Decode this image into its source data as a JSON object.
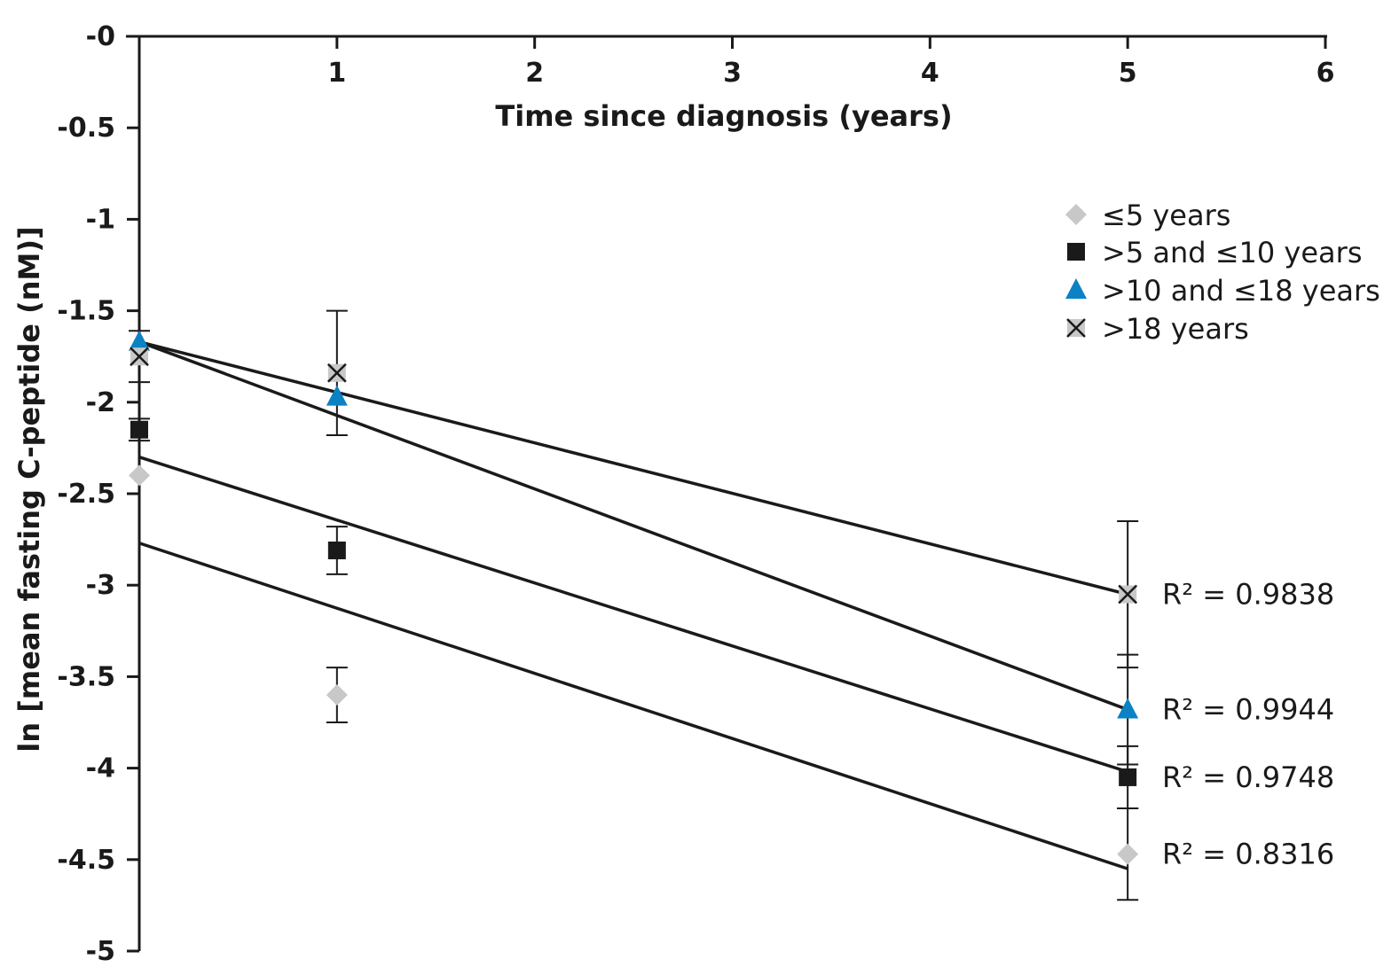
{
  "chart_data": {
    "type": "scatter",
    "title": "",
    "xlabel": "Time since diagnosis (years)",
    "ylabel": "ln [mean fasting C-peptide (nM)]",
    "xlim": [
      0,
      6
    ],
    "ylim": [
      -5,
      0
    ],
    "x_axis_position": "top",
    "x_ticks": [
      {
        "value": 1,
        "label": "1"
      },
      {
        "value": 2,
        "label": "2"
      },
      {
        "value": 3,
        "label": "3"
      },
      {
        "value": 4,
        "label": "4"
      },
      {
        "value": 5,
        "label": "5"
      },
      {
        "value": 6,
        "label": "6"
      }
    ],
    "y_ticks": [
      {
        "value": 0,
        "label": "-0"
      },
      {
        "value": -0.5,
        "label": "-0.5"
      },
      {
        "value": -1,
        "label": "-1"
      },
      {
        "value": -1.5,
        "label": "-1.5"
      },
      {
        "value": -2,
        "label": "-2"
      },
      {
        "value": -2.5,
        "label": "-2.5"
      },
      {
        "value": -3,
        "label": "-3"
      },
      {
        "value": -3.5,
        "label": "-3.5"
      },
      {
        "value": -4,
        "label": "-4"
      },
      {
        "value": -4.5,
        "label": "-4.5"
      },
      {
        "value": -5,
        "label": "-5"
      }
    ],
    "grid": false,
    "legend_position": "top-right",
    "series": [
      {
        "name": "≤5 years",
        "marker": "diamond",
        "color": "#c8c8c8",
        "points": [
          {
            "x": 0,
            "y": -2.4,
            "err": 0
          },
          {
            "x": 1,
            "y": -3.6,
            "err": 0.15
          },
          {
            "x": 5,
            "y": -4.47,
            "err": 0.25
          }
        ],
        "trend": {
          "start": [
            0,
            -2.77
          ],
          "end": [
            5,
            -4.55
          ]
        },
        "r2_label": "R² = 0.8316"
      },
      {
        "name": ">5 and ≤10 years",
        "marker": "square",
        "color": "#1a1a1a",
        "points": [
          {
            "x": 0,
            "y": -2.15,
            "err": 0.06
          },
          {
            "x": 1,
            "y": -2.81,
            "err": 0.13
          },
          {
            "x": 5,
            "y": -4.05,
            "err": 0.17
          }
        ],
        "trend": {
          "start": [
            0,
            -2.3
          ],
          "end": [
            5,
            -4.02
          ]
        },
        "r2_label": "R² = 0.9748"
      },
      {
        "name": ">10 and ≤18 years",
        "marker": "triangle",
        "color": "#0a82c4",
        "points": [
          {
            "x": 0,
            "y": -1.67,
            "err": 0
          },
          {
            "x": 1,
            "y": -1.97,
            "err": 0
          },
          {
            "x": 5,
            "y": -3.68,
            "err": 0.3
          }
        ],
        "trend": {
          "start": [
            0,
            -1.67
          ],
          "end": [
            5,
            -3.68
          ]
        },
        "r2_label": "R² = 0.9944"
      },
      {
        "name": ">18 years",
        "marker": "cross",
        "color": "#c8c8c8",
        "points": [
          {
            "x": 0,
            "y": -1.75,
            "err": 0.14
          },
          {
            "x": 1,
            "y": -1.84,
            "err": 0.34
          },
          {
            "x": 5,
            "y": -3.05,
            "err": 0.4
          }
        ],
        "trend": {
          "start": [
            0,
            -1.67
          ],
          "end": [
            5,
            -3.05
          ]
        },
        "r2_label": "R² = 0.9838"
      }
    ]
  }
}
